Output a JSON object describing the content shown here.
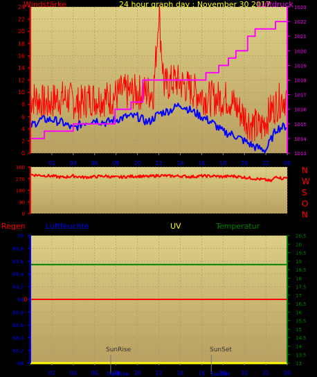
{
  "header": {
    "left_title": "Windstärke",
    "center_title": "24 hour graph day : November 30 2017",
    "right_title": "Luftdruck"
  },
  "lower_labels": {
    "regen": "Regen",
    "luftfeuchte": "Luftfeuchte",
    "uv": "UV",
    "temperatur": "Temperatur",
    "zero_marker": "0",
    "sunrise": "SunRise",
    "sunset": "SunSet",
    "sunrise_bottom": "SunRise",
    "sunset_bottom": "SunSet"
  },
  "compass": [
    "N",
    "W",
    "S",
    "O",
    "N"
  ],
  "colors": {
    "panel_bg": "#c8b46e",
    "wind_gust": "#ff0000",
    "wind_avg": "#0000ff",
    "pressure": "#ff00ff",
    "direction": "#ff0000",
    "rain": "#ff0000",
    "humidity": "#0000ff",
    "uv": "#ffff00",
    "temperature": "#008000",
    "header_center": "#ffff00"
  },
  "chart_data": [
    {
      "type": "line",
      "name": "wind-pressure",
      "x_ticks": [
        "02",
        "04",
        "06",
        "08",
        "10",
        "12",
        "14",
        "16",
        "18",
        "20",
        "22",
        "00"
      ],
      "y_left_ticks": [
        "0",
        "2",
        "4",
        "6",
        "8",
        "10",
        "12",
        "14",
        "16",
        "18",
        "20",
        "22",
        "24"
      ],
      "y_right_ticks": [
        "1013",
        "1014",
        "1015",
        "1016",
        "1017",
        "1018",
        "1019",
        "1020",
        "1021",
        "1022",
        "1023"
      ],
      "ylim_left": [
        0,
        24
      ],
      "ylim_right": [
        1013,
        1023
      ],
      "xlim": [
        0,
        24
      ],
      "series": [
        {
          "name": "gust",
          "axis": "left",
          "x": [
            0.5,
            1.5,
            2.5,
            3.5,
            4.5,
            5.5,
            6.5,
            7.5,
            8.5,
            9.5,
            10.5,
            11.5,
            12,
            12.5,
            13.5,
            14.5,
            15.5,
            16.5,
            17.5,
            18.5,
            19.5,
            20.5,
            21.5,
            22.5,
            23.5
          ],
          "values": [
            9,
            8,
            9,
            9,
            8,
            9,
            9,
            9,
            10,
            10,
            10,
            10,
            23,
            11,
            12,
            11,
            10,
            9,
            9,
            9,
            7,
            5,
            4,
            7,
            9
          ]
        },
        {
          "name": "average",
          "axis": "left",
          "x": [
            0,
            1,
            2,
            3,
            4,
            5,
            6,
            7,
            8,
            9,
            10,
            11,
            12,
            13,
            14,
            15,
            16,
            17,
            18,
            19,
            20,
            21,
            22,
            23,
            24
          ],
          "values": [
            4.5,
            5.5,
            5.5,
            5,
            4,
            5,
            5.5,
            5,
            5.5,
            6,
            6,
            5,
            6.5,
            7,
            8,
            7,
            6,
            5,
            3.5,
            3,
            2,
            1,
            0.5,
            4,
            4.5
          ]
        },
        {
          "name": "pressure",
          "axis": "right",
          "x": [
            0,
            1.3,
            1.3,
            4.0,
            4.0,
            7.9,
            7.9,
            9.4,
            9.4,
            10.5,
            10.5,
            16.4,
            16.4,
            17.6,
            17.6,
            18.5,
            18.5,
            19.2,
            19.2,
            20.3,
            20.3,
            21.0,
            21.0,
            22.9,
            22.9,
            24
          ],
          "values": [
            1014,
            1014,
            1014.5,
            1014.5,
            1015,
            1015,
            1016,
            1016,
            1016.5,
            1016.5,
            1018,
            1018,
            1018.5,
            1018.5,
            1019,
            1019,
            1019.5,
            1019.5,
            1020,
            1020,
            1021,
            1021,
            1021.5,
            1021.5,
            1022,
            1022
          ]
        }
      ]
    },
    {
      "type": "line",
      "name": "wind-direction",
      "y_ticks": [
        "0",
        "90",
        "180",
        "270",
        "360"
      ],
      "ylim": [
        0,
        360
      ],
      "xlim": [
        0,
        24
      ],
      "series": [
        {
          "name": "direction",
          "x": [
            0,
            1,
            2,
            3,
            4,
            5,
            6,
            7,
            8,
            9,
            10,
            11,
            12,
            13,
            14,
            15,
            16,
            17,
            18,
            19,
            20,
            21,
            22,
            22.5,
            23,
            23.5,
            24
          ],
          "values": [
            300,
            295,
            290,
            280,
            290,
            280,
            285,
            290,
            280,
            285,
            290,
            285,
            295,
            290,
            290,
            285,
            290,
            290,
            285,
            290,
            280,
            270,
            260,
            250,
            290,
            270,
            280
          ]
        }
      ]
    },
    {
      "type": "line",
      "name": "humidity-temperature",
      "y_left_ticks": [
        "68",
        "68,2",
        "68,4",
        "68,6",
        "68,8",
        "69",
        "69,2",
        "69,4",
        "69,6",
        "69,8",
        "70"
      ],
      "y_right_ticks": [
        "13",
        "13,5",
        "14",
        "14,5",
        "15",
        "15,5",
        "16",
        "16,5",
        "17",
        "17,5",
        "18",
        "18,5",
        "19",
        "19,5",
        "20",
        "20,5"
      ],
      "ylim_left": [
        68,
        70
      ],
      "ylim_right": [
        13,
        20.5
      ],
      "xlim": [
        0,
        24
      ],
      "series": [
        {
          "name": "temperature",
          "axis": "right",
          "x": [
            0,
            24
          ],
          "values": [
            18.8,
            18.8
          ]
        },
        {
          "name": "rain",
          "axis": "left",
          "x": [
            0,
            24
          ],
          "values": [
            69,
            69
          ]
        },
        {
          "name": "uv",
          "axis": "left",
          "x": [
            0,
            24
          ],
          "values": [
            68,
            68
          ]
        }
      ],
      "markers": [
        {
          "name": "sunrise",
          "x": 7.5
        },
        {
          "name": "sunset",
          "x": 16.9
        }
      ]
    }
  ]
}
